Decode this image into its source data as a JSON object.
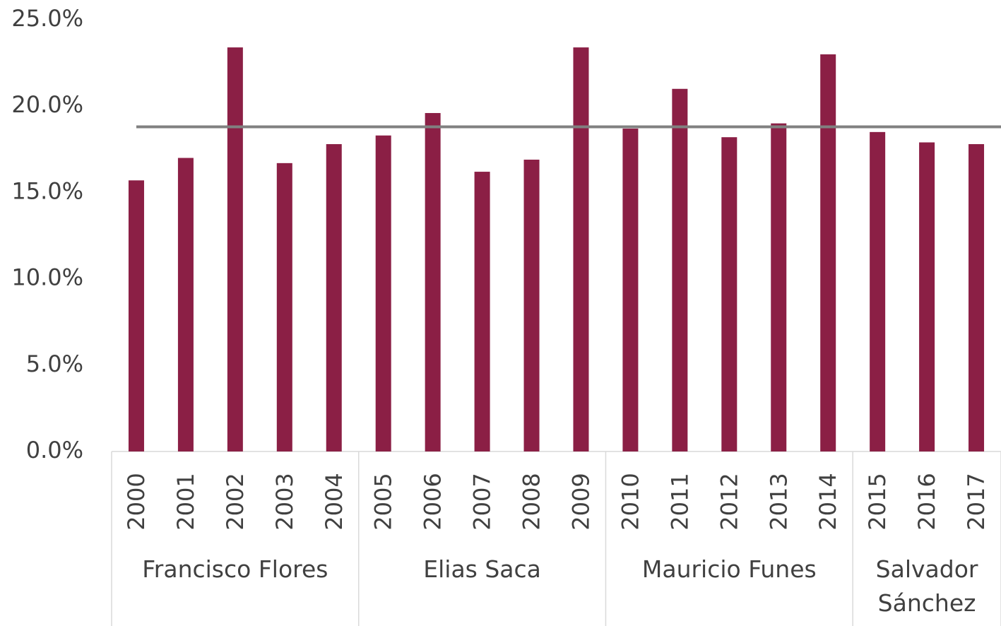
{
  "chart_data": {
    "type": "bar",
    "categories": [
      "2000",
      "2001",
      "2002",
      "2003",
      "2004",
      "2005",
      "2006",
      "2007",
      "2008",
      "2009",
      "2010",
      "2011",
      "2012",
      "2013",
      "2014",
      "2015",
      "2016",
      "2017"
    ],
    "values": [
      15.7,
      17.0,
      23.4,
      16.7,
      17.8,
      18.3,
      19.6,
      16.2,
      16.9,
      23.4,
      18.7,
      21.0,
      18.2,
      19.0,
      23.0,
      18.5,
      17.9,
      17.8
    ],
    "color": "#8b1f45",
    "reference_line": {
      "value": 18.8,
      "color": "#808080"
    },
    "category_groups": [
      {
        "label": "Francisco Flores",
        "from": "2000",
        "to": "2004"
      },
      {
        "label": "Elias Saca",
        "from": "2005",
        "to": "2009"
      },
      {
        "label": "Mauricio Funes",
        "from": "2010",
        "to": "2014"
      },
      {
        "label": "Salvador Sánchez",
        "from": "2015",
        "to": "2017"
      }
    ],
    "ylim": [
      0,
      25
    ],
    "yticks": [
      {
        "value": 0,
        "label": "0.0%"
      },
      {
        "value": 5,
        "label": "5.0%"
      },
      {
        "value": 10,
        "label": "10.0%"
      },
      {
        "value": 15,
        "label": "15.0%"
      },
      {
        "value": 20,
        "label": "20.0%"
      },
      {
        "value": 25,
        "label": "25.0%"
      }
    ],
    "grid": false
  }
}
